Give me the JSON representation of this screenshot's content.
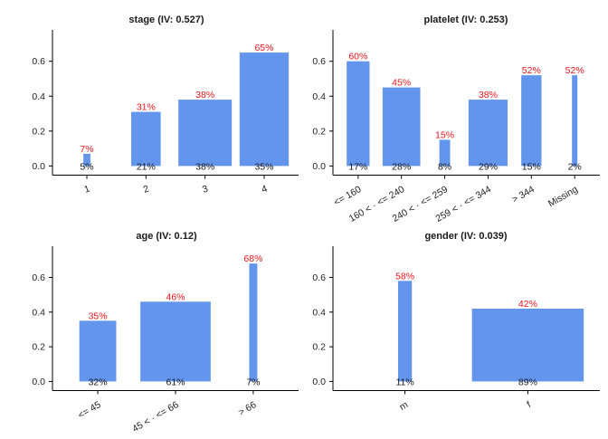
{
  "colors": {
    "bar": "#6495ED",
    "bad_rate_label": "#E8161B",
    "count_label": "#1A1A1A"
  },
  "chart_data": [
    {
      "type": "bar",
      "title": "stage (IV: 0.527)",
      "categories": [
        "1",
        "2",
        "3",
        "4"
      ],
      "widths": [
        0.05,
        0.21,
        0.38,
        0.35
      ],
      "count_labels": [
        "5%",
        "21%",
        "38%",
        "35%"
      ],
      "values": [
        0.07,
        0.31,
        0.38,
        0.65
      ],
      "value_labels": [
        "7%",
        "31%",
        "38%",
        "65%"
      ],
      "yticks": [
        "0.0",
        "0.2",
        "0.4",
        "0.6"
      ],
      "ylim": [
        -0.05,
        0.78
      ],
      "grid": false
    },
    {
      "type": "bar",
      "title": "platelet (IV: 0.253)",
      "categories": [
        "<= 160",
        "160 < · <= 240",
        "240 < · <= 259",
        "259 < · <= 344",
        "> 344",
        "Missing"
      ],
      "widths": [
        0.17,
        0.28,
        0.08,
        0.29,
        0.15,
        0.02
      ],
      "count_labels": [
        "17%",
        "28%",
        "8%",
        "29%",
        "15%",
        "2%"
      ],
      "values": [
        0.6,
        0.45,
        0.15,
        0.38,
        0.52,
        0.52
      ],
      "value_labels": [
        "60%",
        "45%",
        "15%",
        "38%",
        "52%",
        "52%"
      ],
      "yticks": [
        "0.0",
        "0.2",
        "0.4",
        "0.6"
      ],
      "ylim": [
        -0.05,
        0.78
      ],
      "grid": false
    },
    {
      "type": "bar",
      "title": "age (IV: 0.12)",
      "categories": [
        "<= 45",
        "45 < · <= 66",
        "> 66"
      ],
      "widths": [
        0.32,
        0.61,
        0.07
      ],
      "count_labels": [
        "32%",
        "61%",
        "7%"
      ],
      "values": [
        0.35,
        0.46,
        0.68
      ],
      "value_labels": [
        "35%",
        "46%",
        "68%"
      ],
      "yticks": [
        "0.0",
        "0.2",
        "0.4",
        "0.6"
      ],
      "ylim": [
        -0.05,
        0.78
      ],
      "grid": false
    },
    {
      "type": "bar",
      "title": "gender (IV: 0.039)",
      "categories": [
        "m",
        "f"
      ],
      "widths": [
        0.11,
        0.89
      ],
      "count_labels": [
        "11%",
        "89%"
      ],
      "values": [
        0.58,
        0.42
      ],
      "value_labels": [
        "58%",
        "42%"
      ],
      "yticks": [
        "0.0",
        "0.2",
        "0.4",
        "0.6"
      ],
      "ylim": [
        -0.05,
        0.78
      ],
      "grid": false
    }
  ]
}
